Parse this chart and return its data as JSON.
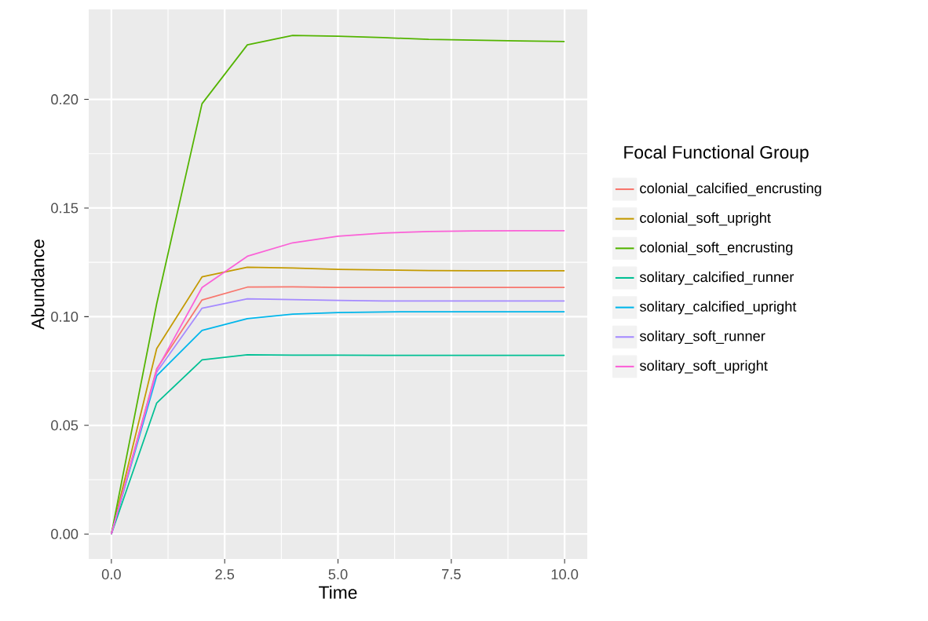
{
  "chart_data": {
    "type": "line",
    "xlabel": "Time",
    "ylabel": "Abundance",
    "legend_title": "Focal Functional Group",
    "x": [
      0,
      1,
      2,
      3,
      4,
      5,
      6,
      7,
      8,
      9,
      10
    ],
    "series": [
      {
        "name": "colonial_calcified_encrusting",
        "color": "#F8766D",
        "values": [
          0,
          0.076,
          0.1077,
          0.1136,
          0.1137,
          0.1135,
          0.1135,
          0.1135,
          0.1135,
          0.1135,
          0.1135
        ]
      },
      {
        "name": "colonial_soft_upright",
        "color": "#C49A00",
        "values": [
          0,
          0.0853,
          0.1183,
          0.1228,
          0.1224,
          0.1218,
          0.1215,
          0.1212,
          0.1211,
          0.1211,
          0.1211
        ]
      },
      {
        "name": "colonial_soft_encrusting",
        "color": "#53B400",
        "values": [
          0,
          0.106,
          0.198,
          0.2251,
          0.2294,
          0.2291,
          0.2284,
          0.2276,
          0.2273,
          0.2269,
          0.2266
        ]
      },
      {
        "name": "solitary_calcified_runner",
        "color": "#00C094",
        "values": [
          0,
          0.0603,
          0.0801,
          0.0825,
          0.0823,
          0.0823,
          0.0822,
          0.0822,
          0.0822,
          0.0822,
          0.0822
        ]
      },
      {
        "name": "solitary_calcified_upright",
        "color": "#00B6EB",
        "values": [
          0,
          0.0728,
          0.0937,
          0.0991,
          0.1012,
          0.1019,
          0.1022,
          0.1023,
          0.1023,
          0.1023,
          0.1023
        ]
      },
      {
        "name": "solitary_soft_runner",
        "color": "#A58AFF",
        "values": [
          0,
          0.0745,
          0.1039,
          0.1082,
          0.1079,
          0.1075,
          0.1072,
          0.1072,
          0.1072,
          0.1072,
          0.1072
        ]
      },
      {
        "name": "solitary_soft_upright",
        "color": "#FB61D7",
        "values": [
          0,
          0.0755,
          0.1134,
          0.1278,
          0.134,
          0.137,
          0.1385,
          0.1392,
          0.1395,
          0.1396,
          0.1396
        ]
      }
    ],
    "xlim": [
      -0.5,
      10.5
    ],
    "ylim": [
      -0.0115,
      0.2414
    ],
    "xticks": [
      {
        "value": 0,
        "label": "0.0"
      },
      {
        "value": 2.5,
        "label": "2.5"
      },
      {
        "value": 5,
        "label": "5.0"
      },
      {
        "value": 7.5,
        "label": "7.5"
      },
      {
        "value": 10,
        "label": "10.0"
      }
    ],
    "yticks": [
      {
        "value": 0,
        "label": "0.00"
      },
      {
        "value": 0.05,
        "label": "0.05"
      },
      {
        "value": 0.1,
        "label": "0.10"
      },
      {
        "value": 0.15,
        "label": "0.15"
      },
      {
        "value": 0.2,
        "label": "0.20"
      }
    ],
    "grid": true,
    "legend": "right"
  }
}
